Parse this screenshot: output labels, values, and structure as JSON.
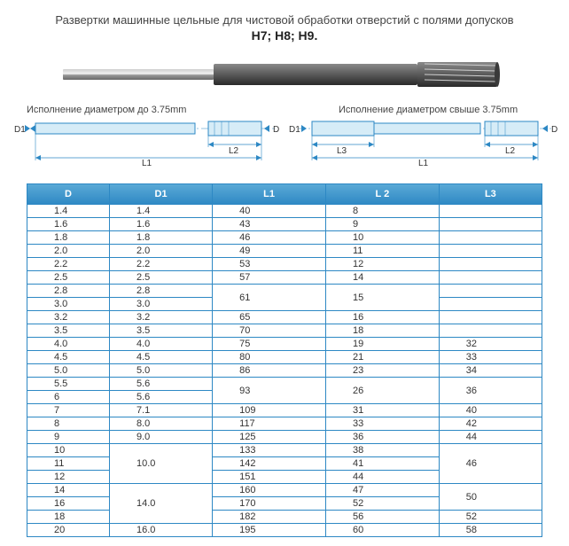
{
  "title_line1": "Развертки машинные цельные для чистовой обработки отверстий с полями допусков",
  "title_line2": "H7; H8; H9",
  "diagram_left_label": "Исполнение диаметром до 3.75mm",
  "diagram_right_label": "Исполнение диаметром свыше 3.75mm",
  "dim_labels": {
    "D": "D",
    "D1": "D1",
    "L1": "L1",
    "L2": "L2",
    "L3": "L3"
  },
  "table": {
    "columns": [
      "D",
      "D1",
      "L1",
      "L 2",
      "L3"
    ],
    "header_bg_gradient": [
      "#5aa9d6",
      "#2d88c4"
    ],
    "header_text_color": "#ffffff",
    "border_color": "#2d88c4",
    "cell_text_color": "#333333",
    "rows": [
      {
        "D": "1.4",
        "D1": "1.4",
        "L1": "40",
        "L2": "8",
        "L3": ""
      },
      {
        "D": "1.6",
        "D1": "1.6",
        "L1": "43",
        "L2": "9",
        "L3": ""
      },
      {
        "D": "1.8",
        "D1": "1.8",
        "L1": "46",
        "L2": "10",
        "L3": ""
      },
      {
        "D": "2.0",
        "D1": "2.0",
        "L1": "49",
        "L2": "11",
        "L3": ""
      },
      {
        "D": "2.2",
        "D1": "2.2",
        "L1": "53",
        "L2": "12",
        "L3": ""
      },
      {
        "D": "2.5",
        "D1": "2.5",
        "L1": "57",
        "L2": "14",
        "L3": ""
      },
      {
        "D": "2.8",
        "D1": "2.8",
        "L1_span": 2,
        "L1": "61",
        "L2_span": 2,
        "L2": "15",
        "L3": ""
      },
      {
        "D": "3.0",
        "D1": "3.0",
        "L3": ""
      },
      {
        "D": "3.2",
        "D1": "3.2",
        "L1": "65",
        "L2": "16",
        "L3": ""
      },
      {
        "D": "3.5",
        "D1": "3.5",
        "L1": "70",
        "L2": "18",
        "L3": ""
      },
      {
        "D": "4.0",
        "D1": "4.0",
        "L1": "75",
        "L2": "19",
        "L3": "32"
      },
      {
        "D": "4.5",
        "D1": "4.5",
        "L1": "80",
        "L2": "21",
        "L3": "33"
      },
      {
        "D": "5.0",
        "D1": "5.0",
        "L1": "86",
        "L2": "23",
        "L3": "34"
      },
      {
        "D": "5.5",
        "D1": "5.6",
        "L1_span": 2,
        "L1": "93",
        "L2_span": 2,
        "L2": "26",
        "L3_span": 2,
        "L3": "36"
      },
      {
        "D": "6",
        "D1": "5.6"
      },
      {
        "D": "7",
        "D1": "7.1",
        "L1": "109",
        "L2": "31",
        "L3": "40"
      },
      {
        "D": "8",
        "D1": "8.0",
        "L1": "117",
        "L2": "33",
        "L3": "42"
      },
      {
        "D": "9",
        "D1": "9.0",
        "L1": "125",
        "L2": "36",
        "L3": "44"
      },
      {
        "D": "10",
        "D1_span": 3,
        "D1": "10.0",
        "L1": "133",
        "L2": "38",
        "L3_span": 3,
        "L3": "46"
      },
      {
        "D": "11",
        "L1": "142",
        "L2": "41"
      },
      {
        "D": "12",
        "L1": "151",
        "L2": "44"
      },
      {
        "D": "14",
        "D1_span": 3,
        "D1": "14.0",
        "L1": "160",
        "L2": "47",
        "L3_span": 2,
        "L3": "50"
      },
      {
        "D": "16",
        "L1": "170",
        "L2": "52"
      },
      {
        "D": "18",
        "L1": "182",
        "L2": "56",
        "L3": "52"
      },
      {
        "D": "20",
        "D1": "16.0",
        "L1": "195",
        "L2": "60",
        "L3": "58"
      }
    ]
  },
  "diagram_colors": {
    "outline": "#2d88c4",
    "fill": "#d6ecf7",
    "text": "#333333",
    "dim_line": "#2d88c4"
  },
  "tool_colors": {
    "shank": "#7a7a7a",
    "shank_light": "#cfcfcf",
    "body": "#4d4d4d",
    "flute": "#2a2a2a"
  }
}
